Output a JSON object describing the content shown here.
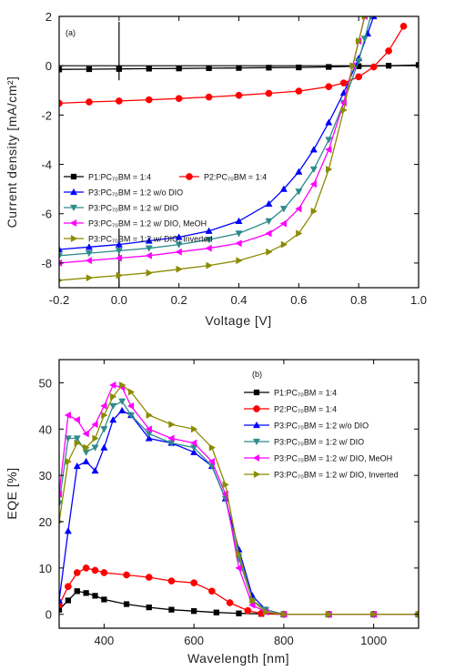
{
  "chart_data": [
    {
      "type": "line",
      "panel_label": "(a)",
      "xlabel": "Voltage [V]",
      "ylabel": "Current density [mA/cm²]",
      "xlim": [
        -0.2,
        1.0
      ],
      "ylim": [
        -9,
        2
      ],
      "xticks": [
        -0.2,
        0.0,
        0.2,
        0.4,
        0.6,
        0.8,
        1.0
      ],
      "xtick_labels": [
        "-0.2",
        "0.0",
        "0.2",
        "0.4",
        "0.6",
        "0.8",
        "1.0"
      ],
      "yticks": [
        -8,
        -6,
        -4,
        -2,
        0,
        2
      ],
      "ytick_labels": [
        "-8",
        "-6",
        "-4",
        "-2",
        "0",
        "2"
      ],
      "legend_placement": "lower-left",
      "series": [
        {
          "name": "P1:PC₇₀BM = 1:4",
          "color": "#000000",
          "marker": "square",
          "x": [
            -0.2,
            -0.1,
            0.0,
            0.1,
            0.2,
            0.3,
            0.4,
            0.5,
            0.6,
            0.7,
            0.8,
            0.9,
            1.0
          ],
          "y": [
            -0.15,
            -0.14,
            -0.13,
            -0.12,
            -0.11,
            -0.1,
            -0.09,
            -0.08,
            -0.07,
            -0.05,
            -0.02,
            0.0,
            0.03
          ]
        },
        {
          "name": "P2:PC₇₀BM = 1:4",
          "color": "#ff0000",
          "marker": "circle",
          "x": [
            -0.2,
            -0.1,
            0.0,
            0.1,
            0.2,
            0.3,
            0.4,
            0.5,
            0.6,
            0.7,
            0.75,
            0.8,
            0.85,
            0.9,
            0.95
          ],
          "y": [
            -1.52,
            -1.47,
            -1.43,
            -1.38,
            -1.33,
            -1.27,
            -1.2,
            -1.12,
            -1.03,
            -0.85,
            -0.7,
            -0.45,
            -0.05,
            0.6,
            1.6
          ]
        },
        {
          "name": "P3:PC₇₀BM = 1:2 w/o DIO",
          "color": "#0000ff",
          "marker": "triangle-up",
          "x": [
            -0.2,
            -0.1,
            0.0,
            0.1,
            0.2,
            0.3,
            0.4,
            0.5,
            0.55,
            0.6,
            0.65,
            0.7,
            0.75,
            0.8,
            0.83,
            0.85
          ],
          "y": [
            -7.45,
            -7.35,
            -7.25,
            -7.1,
            -6.95,
            -6.7,
            -6.3,
            -5.6,
            -5.0,
            -4.3,
            -3.4,
            -2.3,
            -1.1,
            0.3,
            1.3,
            2.0
          ]
        },
        {
          "name": "P3:PC₇₀BM = 1:2 w/ DIO",
          "color": "#2e8b8b",
          "marker": "triangle-down",
          "x": [
            -0.2,
            -0.1,
            0.0,
            0.1,
            0.2,
            0.3,
            0.4,
            0.5,
            0.55,
            0.6,
            0.65,
            0.7,
            0.75,
            0.8,
            0.82,
            0.84
          ],
          "y": [
            -7.7,
            -7.6,
            -7.5,
            -7.4,
            -7.25,
            -7.05,
            -6.8,
            -6.3,
            -5.8,
            -5.1,
            -4.2,
            -3.0,
            -1.5,
            0.2,
            1.1,
            2.0
          ]
        },
        {
          "name": "P3:PC₇₀BM = 1:2 w/ DIO, MeOH",
          "color": "#ff00ff",
          "marker": "triangle-left",
          "x": [
            -0.2,
            -0.1,
            0.0,
            0.1,
            0.2,
            0.3,
            0.4,
            0.5,
            0.55,
            0.6,
            0.65,
            0.7,
            0.75,
            0.78,
            0.8,
            0.82
          ],
          "y": [
            -8.0,
            -7.9,
            -7.8,
            -7.7,
            -7.55,
            -7.4,
            -7.2,
            -6.8,
            -6.4,
            -5.8,
            -4.8,
            -3.4,
            -1.5,
            0.0,
            1.0,
            2.0
          ]
        },
        {
          "name": "P3:PC₇₀BM = 1:2 w/ DIO, Inverted",
          "color": "#8b8b00",
          "marker": "triangle-right",
          "x": [
            -0.2,
            -0.1,
            0.0,
            0.1,
            0.2,
            0.3,
            0.4,
            0.5,
            0.55,
            0.6,
            0.65,
            0.7,
            0.75,
            0.78,
            0.8,
            0.82
          ],
          "y": [
            -8.7,
            -8.6,
            -8.5,
            -8.4,
            -8.25,
            -8.1,
            -7.9,
            -7.55,
            -7.25,
            -6.8,
            -5.9,
            -4.2,
            -1.8,
            0.0,
            1.0,
            2.0
          ]
        }
      ]
    },
    {
      "type": "line",
      "panel_label": "(b)",
      "xlabel": "Wavelength [nm]",
      "ylabel": "EQE [%]",
      "xlim": [
        300,
        1100
      ],
      "ylim": [
        -3,
        55
      ],
      "xticks": [
        400,
        600,
        800,
        1000
      ],
      "xtick_labels": [
        "400",
        "600",
        "800",
        "1000"
      ],
      "yticks": [
        0,
        10,
        20,
        30,
        40,
        50
      ],
      "ytick_labels": [
        "0",
        "10",
        "20",
        "30",
        "40",
        "50"
      ],
      "legend_placement": "top-right",
      "series": [
        {
          "name": "P1:PC₇₀BM = 1:4",
          "color": "#000000",
          "marker": "square",
          "x": [
            300,
            320,
            340,
            360,
            380,
            400,
            450,
            500,
            550,
            600,
            650,
            700,
            750,
            800,
            900,
            1000,
            1100
          ],
          "y": [
            1,
            3,
            5,
            4.6,
            4,
            3.2,
            2.2,
            1.5,
            1,
            0.7,
            0.4,
            0.2,
            0.1,
            0,
            0,
            0,
            0
          ]
        },
        {
          "name": "P2:PC₇₀BM = 1:4",
          "color": "#ff0000",
          "marker": "circle",
          "x": [
            300,
            320,
            340,
            360,
            380,
            400,
            450,
            500,
            550,
            600,
            640,
            680,
            720,
            750,
            800,
            900,
            1000,
            1100
          ],
          "y": [
            2,
            6,
            9,
            10,
            9.5,
            9,
            8.5,
            8,
            7.2,
            6.8,
            5,
            2.5,
            0.8,
            0.2,
            0,
            0,
            0,
            0
          ]
        },
        {
          "name": "P3:PC₇₀BM = 1:2 w/o DIO",
          "color": "#0000ff",
          "marker": "triangle-up",
          "x": [
            300,
            320,
            340,
            360,
            380,
            400,
            420,
            440,
            460,
            500,
            550,
            600,
            640,
            670,
            700,
            730,
            760,
            800,
            900,
            1000,
            1100
          ],
          "y": [
            3,
            18,
            32,
            33,
            31,
            36,
            42,
            44,
            43,
            38,
            37,
            35,
            32,
            25,
            14,
            4,
            1,
            0,
            0,
            0,
            0
          ]
        },
        {
          "name": "P3:PC₇₀BM = 1:2 w/ DIO",
          "color": "#2e8b8b",
          "marker": "triangle-down",
          "x": [
            300,
            320,
            340,
            360,
            380,
            400,
            420,
            440,
            460,
            500,
            550,
            600,
            640,
            670,
            700,
            730,
            760,
            800,
            900,
            1000,
            1100
          ],
          "y": [
            24,
            38,
            38,
            35,
            36,
            40,
            45,
            46,
            43,
            39,
            37,
            36,
            32,
            25,
            12,
            3,
            1,
            0,
            0,
            0,
            0
          ]
        },
        {
          "name": "P3:PC₇₀BM = 1:2 w/ DIO, MeOH",
          "color": "#ff00ff",
          "marker": "triangle-left",
          "x": [
            300,
            320,
            340,
            360,
            380,
            400,
            420,
            440,
            460,
            500,
            550,
            600,
            640,
            670,
            700,
            730,
            760,
            800,
            900,
            1000,
            1100
          ],
          "y": [
            26,
            43,
            42,
            39,
            41,
            45,
            49.5,
            49,
            45,
            40,
            38,
            37,
            33,
            26,
            10,
            2,
            0.5,
            0,
            0,
            0,
            0
          ]
        },
        {
          "name": "P3:PC₇₀BM = 1:2 w/ DIO, Inverted",
          "color": "#8b8b00",
          "marker": "triangle-right",
          "x": [
            300,
            320,
            340,
            360,
            380,
            400,
            420,
            440,
            460,
            500,
            550,
            600,
            640,
            670,
            700,
            730,
            760,
            800,
            900,
            1000,
            1100
          ],
          "y": [
            20,
            33,
            37,
            36,
            38,
            43,
            47,
            49.5,
            48,
            43,
            41,
            40,
            36,
            28,
            13,
            3,
            0.5,
            0,
            0,
            0,
            0
          ]
        }
      ]
    }
  ]
}
